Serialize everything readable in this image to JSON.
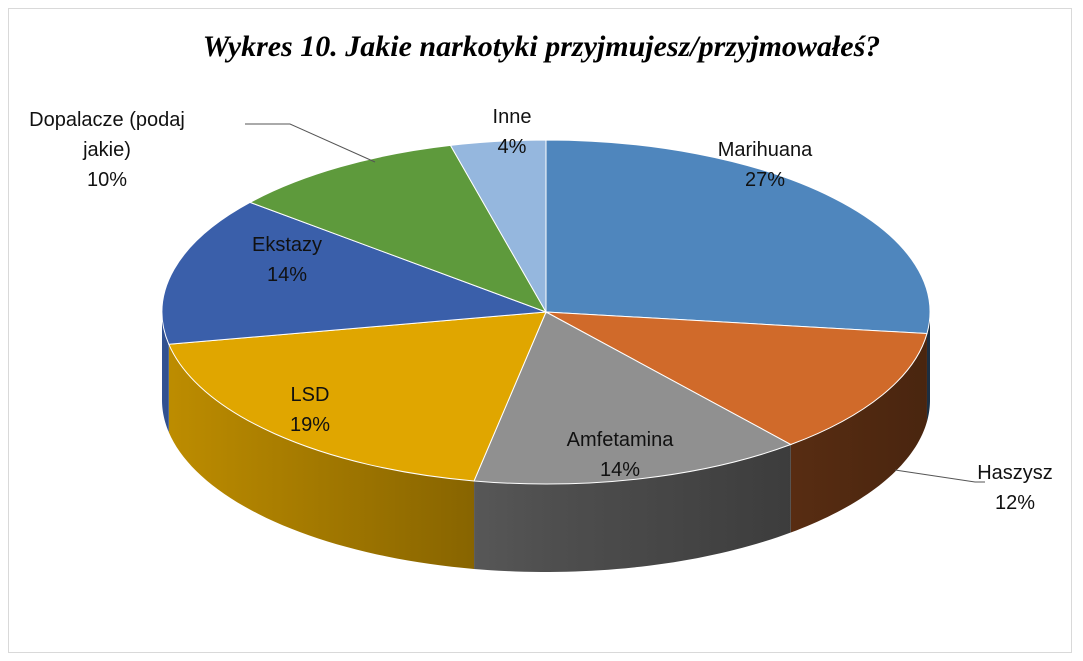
{
  "chart_data": {
    "type": "pie",
    "title": "Wykres 10. Jakie narkotyki przyjmujesz/przyjmowałeś?",
    "categories": [
      "Marihuana",
      "Haszysz",
      "Amfetamina",
      "LSD",
      "Ekstazy",
      "Dopalacze (podaj jakie)",
      "Inne"
    ],
    "values": [
      27,
      12,
      14,
      19,
      14,
      10,
      4
    ],
    "value_labels": [
      "27%",
      "12%",
      "14%",
      "19%",
      "14%",
      "10%",
      "4%"
    ],
    "colors": [
      "#4f86bd",
      "#d06a2a",
      "#909090",
      "#e0a600",
      "#3a5faa",
      "#5e9a3c",
      "#95b7de"
    ]
  }
}
